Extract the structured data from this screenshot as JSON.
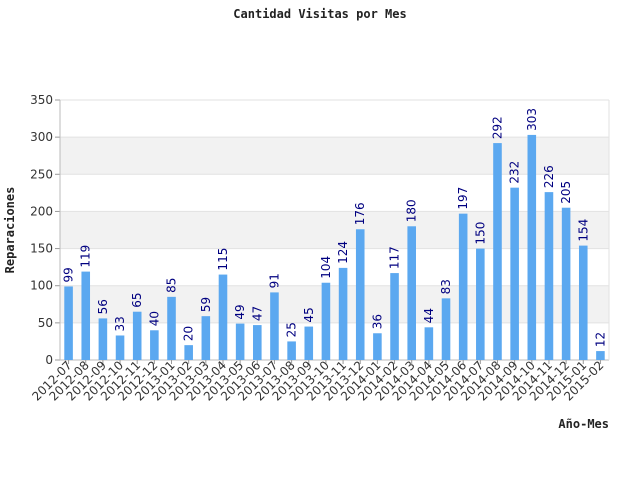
{
  "chart_data": {
    "type": "bar",
    "title": "Cantidad Visitas por Mes",
    "xlabel": "Año-Mes",
    "ylabel": "Reparaciones",
    "ylim": [
      0,
      350
    ],
    "yticks": [
      0,
      50,
      100,
      150,
      200,
      250,
      300,
      350
    ],
    "categories": [
      "2012-07",
      "2012-08",
      "2012-09",
      "2012-10",
      "2012-11",
      "2012-12",
      "2013-01",
      "2013-02",
      "2013-03",
      "2013-04",
      "2013-05",
      "2013-06",
      "2013-07",
      "2013-08",
      "2013-09",
      "2013-10",
      "2013-11",
      "2013-12",
      "2014-01",
      "2014-02",
      "2014-03",
      "2014-04",
      "2014-05",
      "2014-06",
      "2014-07",
      "2014-08",
      "2014-09",
      "2014-10",
      "2014-11",
      "2014-12",
      "2015-01",
      "2015-02"
    ],
    "values": [
      99,
      119,
      56,
      33,
      65,
      40,
      85,
      20,
      59,
      115,
      49,
      47,
      91,
      25,
      45,
      104,
      124,
      176,
      36,
      117,
      180,
      44,
      83,
      197,
      150,
      292,
      232,
      303,
      226,
      205,
      154,
      12
    ],
    "bar_color": "#5ba8f0",
    "band_color": "#f2f2f2",
    "label_color": "#000080",
    "grid": true,
    "legend": "none"
  }
}
